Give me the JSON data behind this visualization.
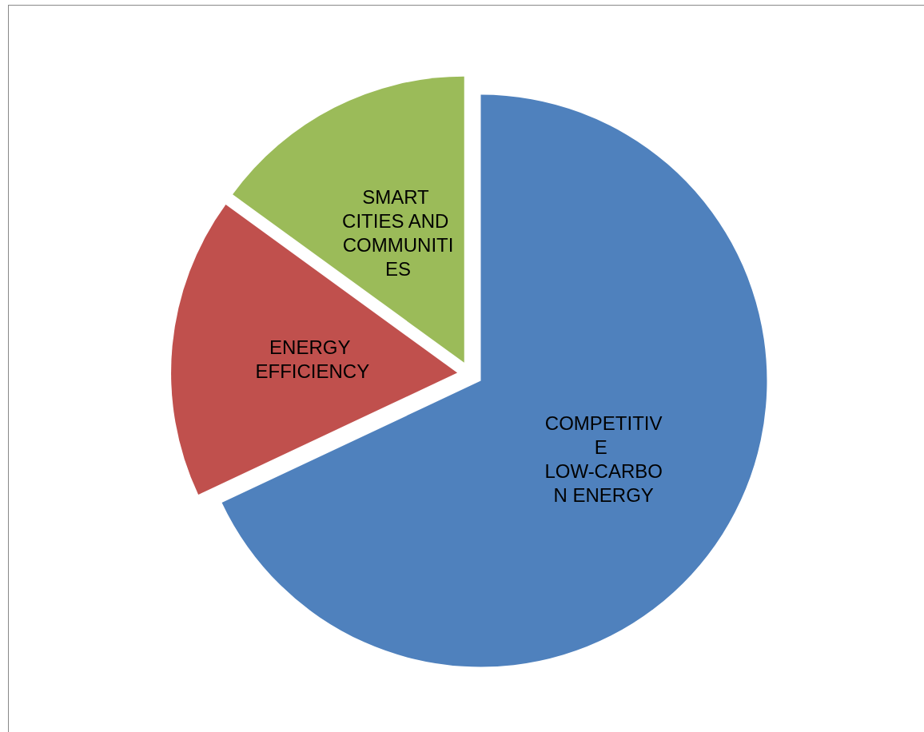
{
  "chart_data": {
    "type": "pie",
    "categories": [
      "COMPETITIVE LOW-CARBON ENERGY",
      "ENERGY EFFICIENCY",
      "SMART CITIES AND COMMUNITIES"
    ],
    "values": [
      68,
      17,
      15
    ],
    "colors": [
      "#4f81bd",
      "#c0504d",
      "#9bbb59"
    ],
    "legend": false
  }
}
